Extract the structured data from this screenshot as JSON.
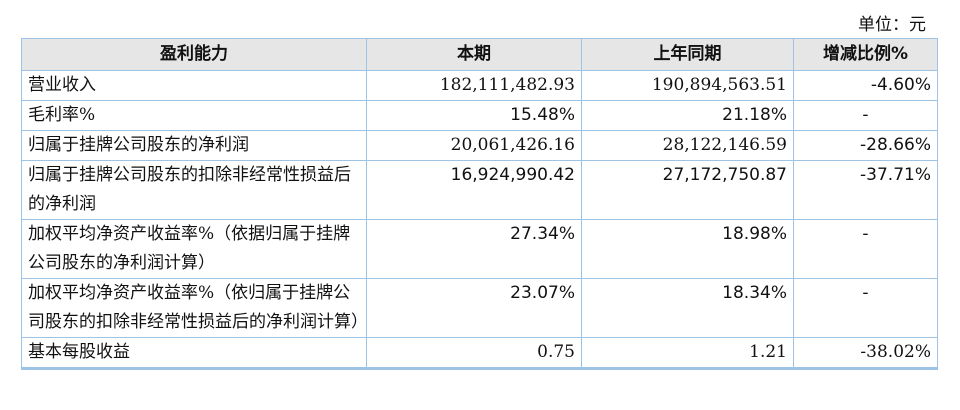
{
  "unit_label": "单位：元",
  "headers": [
    "盈利能力",
    "本期",
    "上年同期",
    "增减比例%"
  ],
  "rows": [
    {
      "label": "营业收入",
      "current": "182,111,482.93",
      "prior": "190,894,563.51",
      "change": "-4.60%"
    },
    {
      "label": "毛利率%",
      "current": "15.48%",
      "prior": "21.18%",
      "change": "-"
    },
    {
      "label": "归属于挂牌公司股东的净利润",
      "current": "20,061,426.16",
      "prior": "28,122,146.59",
      "change": "-28.66%"
    },
    {
      "label": "归属于挂牌公司股东的扣除非经常性损益后的净利润",
      "current": "16,924,990.42",
      "prior": "27,172,750.87",
      "change": "-37.71%"
    },
    {
      "label": "加权平均净资产收益率%（依据归属于挂牌公司股东的净利润计算）",
      "current": "27.34%",
      "prior": "18.98%",
      "change": "-"
    },
    {
      "label": "加权平均净资产收益率%（依归属于挂牌公司股东的扣除非经常性损益后的净利润计算）",
      "current": "23.07%",
      "prior": "18.34%",
      "change": "-"
    },
    {
      "label": "基本每股收益",
      "current": "0.75",
      "prior": "1.21",
      "change": "-38.02%"
    }
  ]
}
